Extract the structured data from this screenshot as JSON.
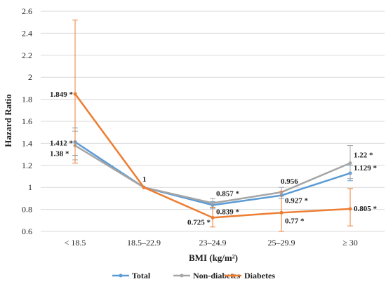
{
  "chart_data": {
    "type": "line",
    "xlabel": "BMI (kg/m²)",
    "ylabel": "Hazard Ratio",
    "categories": [
      "< 18.5",
      "18.5–22.9",
      "23–24.9",
      "25–29.9",
      "≥ 30"
    ],
    "ylim": [
      0.6,
      2.6
    ],
    "yticks": [
      "0.6",
      "0.8",
      "1",
      "1.2",
      "1.4",
      "1.6",
      "1.8",
      "2",
      "2.2",
      "2.4",
      "2.6"
    ],
    "grid": true,
    "legend": "bottom",
    "series": [
      {
        "name": "Total",
        "color": "#5b9bd5",
        "values": [
          1.412,
          1.0,
          0.839,
          0.927,
          1.129
        ],
        "ci_low": [
          1.29,
          1.0,
          0.81,
          0.9,
          1.06
        ],
        "ci_high": [
          1.54,
          1.0,
          0.87,
          0.96,
          1.2
        ],
        "labels": [
          "1.412 *",
          "",
          "0.839 *",
          "0.927 *",
          "1.129 *"
        ]
      },
      {
        "name": "Non-diabetes",
        "color": "#a5a5a5",
        "values": [
          1.38,
          1.0,
          0.857,
          0.956,
          1.22
        ],
        "ci_low": [
          1.25,
          1.0,
          0.82,
          0.92,
          1.08
        ],
        "ci_high": [
          1.51,
          1.0,
          0.9,
          1.0,
          1.38
        ],
        "labels": [
          "1.38 *",
          "1",
          "0.857 *",
          "0.956",
          "1.22 *"
        ]
      },
      {
        "name": "Diabetes",
        "color": "#ed7d31",
        "values": [
          1.849,
          1.0,
          0.725,
          0.77,
          0.805
        ],
        "ci_low": [
          1.22,
          1.0,
          0.64,
          0.6,
          0.65
        ],
        "ci_high": [
          2.52,
          1.0,
          0.82,
          0.96,
          0.99
        ],
        "labels": [
          "1.849 *",
          "",
          "0.725 *",
          "0.77 *",
          "0.805 *"
        ]
      }
    ]
  }
}
